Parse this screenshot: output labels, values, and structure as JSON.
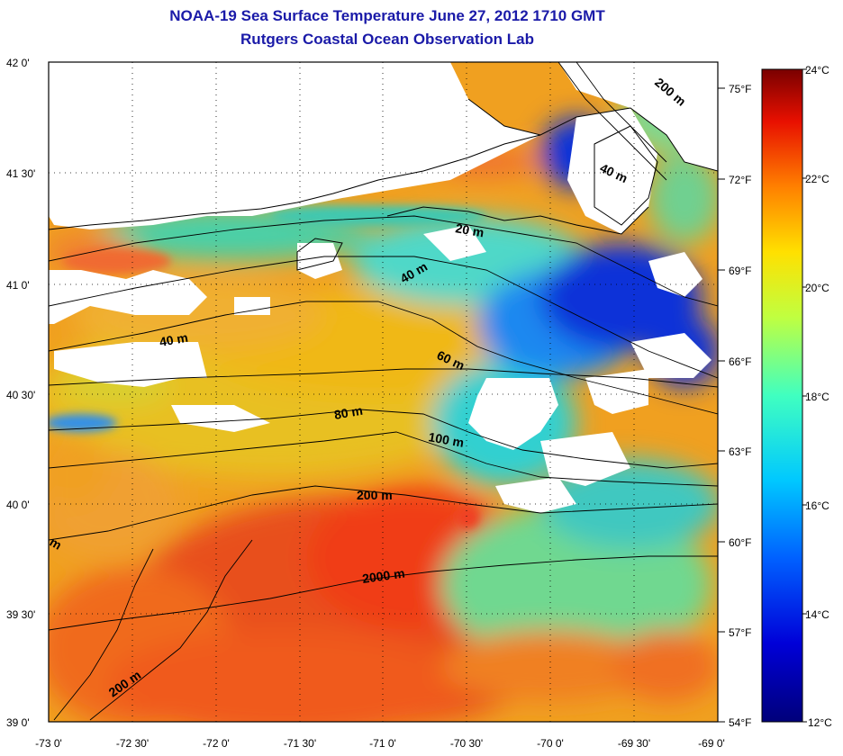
{
  "title": {
    "line1": "NOAA-19 Sea Surface Temperature June 27, 2012 1710 GMT",
    "line2": "Rutgers Coastal Ocean Observation Lab"
  },
  "map": {
    "lat_ticks": [
      "42 0'",
      "41 30'",
      "41 0'",
      "40 30'",
      "40 0'",
      "39 30'",
      "39 0'"
    ],
    "lon_ticks": [
      "-73 0'",
      "-72 30'",
      "-72 0'",
      "-71 30'",
      "-71 0'",
      "-70 30'",
      "-70 0'",
      "-69 30'",
      "-69 0'"
    ],
    "fahrenheit_ticks": [
      "75°F",
      "72°F",
      "69°F",
      "66°F",
      "63°F",
      "60°F",
      "57°F",
      "54°F"
    ],
    "contour_labels": [
      "20 m",
      "40 m",
      "40 m",
      "40 m",
      "60 m",
      "80 m",
      "100 m",
      "200 m",
      "2000 m",
      "200 m",
      "m",
      "200 m"
    ]
  },
  "colorbar": {
    "celsius_ticks": [
      "24°C",
      "22°C",
      "20°C",
      "18°C",
      "16°C",
      "14°C",
      "12°C"
    ]
  },
  "colors": {
    "title": "#1a1aa8",
    "warm": "#e0402a",
    "cool": "#1a2ccc",
    "land": "#ffffff"
  }
}
